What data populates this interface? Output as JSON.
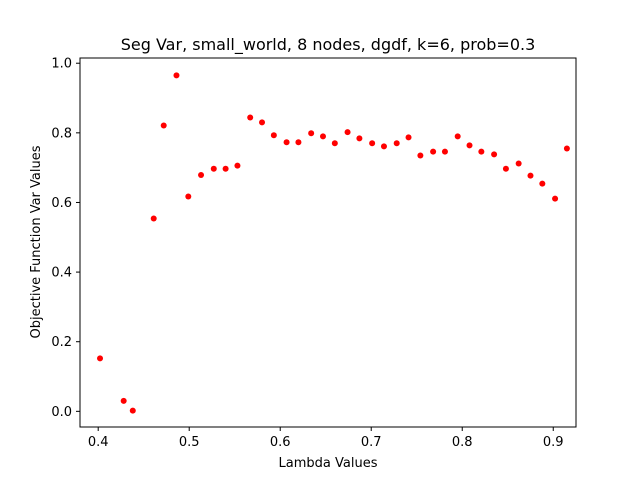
{
  "chart_data": {
    "type": "scatter",
    "title": "Seg Var, small_world, 8 nodes, dgdf, k=6, prob=0.3",
    "xlabel": "Lambda Values",
    "ylabel": "Objective Function Var Values",
    "xlim": [
      0.38,
      0.925
    ],
    "ylim": [
      -0.045,
      1.015
    ],
    "xticks": [
      0.4,
      0.5,
      0.6,
      0.7,
      0.8,
      0.9
    ],
    "yticks": [
      0.0,
      0.2,
      0.4,
      0.6,
      0.8,
      1.0
    ],
    "xtick_labels": [
      "0.4",
      "0.5",
      "0.6",
      "0.7",
      "0.8",
      "0.9"
    ],
    "ytick_labels": [
      "0.0",
      "0.2",
      "0.4",
      "0.6",
      "0.8",
      "1.0"
    ],
    "grid": false,
    "marker_color": "#ff0000",
    "points": [
      {
        "x": 0.402,
        "y": 0.152
      },
      {
        "x": 0.428,
        "y": 0.03
      },
      {
        "x": 0.438,
        "y": 0.002
      },
      {
        "x": 0.461,
        "y": 0.554
      },
      {
        "x": 0.472,
        "y": 0.821
      },
      {
        "x": 0.486,
        "y": 0.965
      },
      {
        "x": 0.499,
        "y": 0.617
      },
      {
        "x": 0.513,
        "y": 0.679
      },
      {
        "x": 0.527,
        "y": 0.697
      },
      {
        "x": 0.54,
        "y": 0.697
      },
      {
        "x": 0.553,
        "y": 0.706
      },
      {
        "x": 0.567,
        "y": 0.844
      },
      {
        "x": 0.58,
        "y": 0.83
      },
      {
        "x": 0.593,
        "y": 0.793
      },
      {
        "x": 0.607,
        "y": 0.773
      },
      {
        "x": 0.62,
        "y": 0.773
      },
      {
        "x": 0.634,
        "y": 0.799
      },
      {
        "x": 0.647,
        "y": 0.79
      },
      {
        "x": 0.66,
        "y": 0.77
      },
      {
        "x": 0.674,
        "y": 0.802
      },
      {
        "x": 0.687,
        "y": 0.784
      },
      {
        "x": 0.701,
        "y": 0.77
      },
      {
        "x": 0.714,
        "y": 0.761
      },
      {
        "x": 0.728,
        "y": 0.77
      },
      {
        "x": 0.741,
        "y": 0.787
      },
      {
        "x": 0.754,
        "y": 0.735
      },
      {
        "x": 0.768,
        "y": 0.746
      },
      {
        "x": 0.781,
        "y": 0.746
      },
      {
        "x": 0.795,
        "y": 0.79
      },
      {
        "x": 0.808,
        "y": 0.764
      },
      {
        "x": 0.821,
        "y": 0.746
      },
      {
        "x": 0.835,
        "y": 0.738
      },
      {
        "x": 0.848,
        "y": 0.697
      },
      {
        "x": 0.862,
        "y": 0.712
      },
      {
        "x": 0.875,
        "y": 0.677
      },
      {
        "x": 0.888,
        "y": 0.654
      },
      {
        "x": 0.902,
        "y": 0.611
      },
      {
        "x": 0.915,
        "y": 0.755
      }
    ]
  }
}
